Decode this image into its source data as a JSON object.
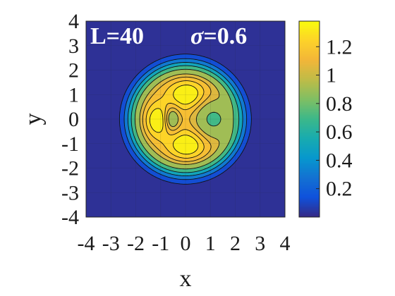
{
  "chart_data": {
    "type": "heatmap",
    "plot_style": "filled-contour",
    "colormap": "parula",
    "xlabel": "x",
    "ylabel": "y",
    "xlim": [
      -4,
      4
    ],
    "ylim": [
      -4,
      4
    ],
    "xticks": [
      -4,
      -3,
      -2,
      -1,
      0,
      1,
      2,
      3,
      4
    ],
    "yticks": [
      -4,
      -3,
      -2,
      -1,
      0,
      1,
      2,
      3,
      4
    ],
    "xtick_labels": [
      "-4",
      "-3",
      "-2",
      "-1",
      "0",
      "1",
      "2",
      "3",
      "4"
    ],
    "ytick_labels": [
      "-4",
      "-3",
      "-2",
      "-1",
      "0",
      "1",
      "2",
      "3",
      "4"
    ],
    "annotation": {
      "L_text": "L=40",
      "sigma_symbol": "σ",
      "sigma_value": "=0.6"
    },
    "colorbar": {
      "range": [
        0,
        1.38
      ],
      "ticks": [
        0.2,
        0.4,
        0.6,
        0.8,
        1,
        1.2
      ],
      "tick_labels": [
        "0.2",
        "0.4",
        "0.6",
        "0.8",
        "1",
        "1.2"
      ]
    },
    "grid": true,
    "contour_levels": [
      0.05,
      0.2,
      0.4,
      0.6,
      0.8,
      1.0,
      1.1,
      1.2,
      1.3
    ],
    "field": {
      "base": {
        "center": [
          0,
          0
        ],
        "amplitude": 1.15,
        "exponent": 8,
        "scale": 1.0
      },
      "features": [
        {
          "kind": "peak",
          "center": [
            -1.1,
            -0.05
          ],
          "amplitude": 0.28,
          "sx": 0.35,
          "sy": 0.45
        },
        {
          "kind": "peak",
          "center": [
            0.05,
            1.0
          ],
          "amplitude": 0.28,
          "sx": 0.5,
          "sy": 0.4
        },
        {
          "kind": "peak",
          "center": [
            0.05,
            -1.05
          ],
          "amplitude": 0.28,
          "sx": 0.5,
          "sy": 0.4
        },
        {
          "kind": "dip",
          "center": [
            -0.55,
            0.0
          ],
          "amplitude": 0.35,
          "sx": 0.22,
          "sy": 0.35
        },
        {
          "kind": "dip",
          "center": [
            1.1,
            0.0
          ],
          "amplitude": 0.4,
          "sx": 0.5,
          "sy": 0.55
        }
      ]
    }
  }
}
